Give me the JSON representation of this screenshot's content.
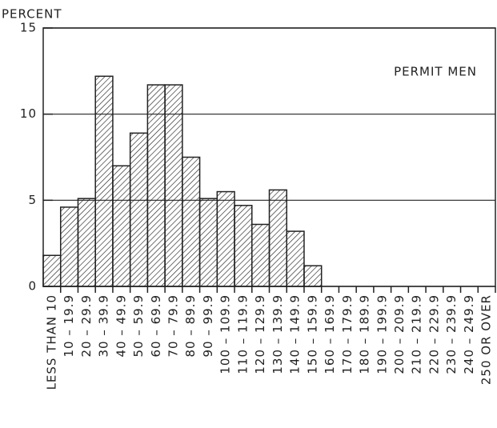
{
  "chart_data": {
    "type": "bar",
    "y_label": "PERCENT",
    "annotation": "PERMIT MEN",
    "categories": [
      "LESS THAN 10",
      "10 – 19.9",
      "20 – 29.9",
      "30 – 39.9",
      "40 – 49.9",
      "50 – 59.9",
      "60 – 69.9",
      "70 – 79.9",
      "80 – 89.9",
      "90 – 99.9",
      "100 – 109.9",
      "110 – 119.9",
      "120 – 129.9",
      "130 – 139.9",
      "140 – 149.9",
      "150 – 159.9",
      "160 – 169.9",
      "170 – 179.9",
      "180 – 189.9",
      "190 – 199.9",
      "200 – 209.9",
      "210 – 219.9",
      "220 – 229.9",
      "230 – 239.9",
      "240 – 249.9",
      "250 OR OVER"
    ],
    "values": [
      1.8,
      4.6,
      5.1,
      12.2,
      7.0,
      8.9,
      11.7,
      11.7,
      7.5,
      5.1,
      5.5,
      4.7,
      3.6,
      5.6,
      3.2,
      1.2,
      0,
      0,
      0,
      0,
      0,
      0,
      0,
      0,
      0,
      0
    ],
    "color": "#222222",
    "ylim": [
      0,
      15
    ],
    "yticks": [
      0,
      5,
      10,
      15
    ],
    "grid": true
  }
}
